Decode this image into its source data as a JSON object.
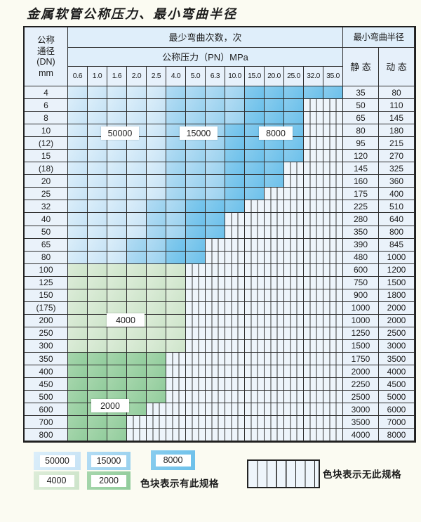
{
  "title": "金属软管公称压力、最小弯曲半径",
  "table": {
    "header": {
      "dn_lines": [
        "公称",
        "通径",
        "(DN)",
        "mm"
      ],
      "bend_cycles_label": "最少弯曲次数，次",
      "pressure_label": "公称压力（PN）MPa",
      "pressure_columns": [
        "0.6",
        "1.0",
        "1.6",
        "2.0",
        "2.5",
        "4.0",
        "5.0",
        "6.3",
        "10.0",
        "15.0",
        "20.0",
        "25.0",
        "32.0",
        "35.0"
      ],
      "radius_label": "最小弯曲半径",
      "static_label": "静 态",
      "dynamic_label": "动 态"
    },
    "legend_note": "colored cell = spec exists with given bend-cycle count; striped cell = no such spec",
    "rows": [
      {
        "dn": "4",
        "static_radius": "35",
        "dynamic_radius": "80",
        "zone": "blue",
        "med_from": 5,
        "dark_from": 9,
        "colored_to": 13
      },
      {
        "dn": "6",
        "static_radius": "50",
        "dynamic_radius": "110",
        "zone": "blue",
        "med_from": 5,
        "dark_from": 9,
        "colored_to": 11
      },
      {
        "dn": "8",
        "static_radius": "65",
        "dynamic_radius": "145",
        "zone": "blue",
        "med_from": 5,
        "dark_from": 9,
        "colored_to": 11
      },
      {
        "dn": "10",
        "static_radius": "80",
        "dynamic_radius": "180",
        "zone": "blue",
        "med_from": 5,
        "dark_from": 8,
        "colored_to": 11
      },
      {
        "dn": "(12)",
        "static_radius": "95",
        "dynamic_radius": "215",
        "zone": "blue",
        "med_from": 5,
        "dark_from": 8,
        "colored_to": 11
      },
      {
        "dn": "15",
        "static_radius": "120",
        "dynamic_radius": "270",
        "zone": "blue",
        "med_from": 5,
        "dark_from": 8,
        "colored_to": 11
      },
      {
        "dn": "(18)",
        "static_radius": "145",
        "dynamic_radius": "325",
        "zone": "blue",
        "med_from": 5,
        "dark_from": 8,
        "colored_to": 10
      },
      {
        "dn": "20",
        "static_radius": "160",
        "dynamic_radius": "360",
        "zone": "blue",
        "med_from": 5,
        "dark_from": 8,
        "colored_to": 10
      },
      {
        "dn": "25",
        "static_radius": "175",
        "dynamic_radius": "400",
        "zone": "blue",
        "med_from": 5,
        "dark_from": 8,
        "colored_to": 9
      },
      {
        "dn": "32",
        "static_radius": "225",
        "dynamic_radius": "510",
        "zone": "blue",
        "med_from": 4,
        "dark_from": 6,
        "colored_to": 8
      },
      {
        "dn": "40",
        "static_radius": "280",
        "dynamic_radius": "640",
        "zone": "blue",
        "med_from": 4,
        "dark_from": 6,
        "colored_to": 7
      },
      {
        "dn": "50",
        "static_radius": "350",
        "dynamic_radius": "800",
        "zone": "blue",
        "med_from": 4,
        "dark_from": 6,
        "colored_to": 7
      },
      {
        "dn": "65",
        "static_radius": "390",
        "dynamic_radius": "845",
        "zone": "blue",
        "med_from": 3,
        "dark_from": 5,
        "colored_to": 6
      },
      {
        "dn": "80",
        "static_radius": "480",
        "dynamic_radius": "1000",
        "zone": "blue",
        "med_from": 3,
        "dark_from": 5,
        "colored_to": 6
      },
      {
        "dn": "100",
        "static_radius": "600",
        "dynamic_radius": "1200",
        "zone": "green4000",
        "colored_to": 5
      },
      {
        "dn": "125",
        "static_radius": "750",
        "dynamic_radius": "1500",
        "zone": "green4000",
        "colored_to": 5
      },
      {
        "dn": "150",
        "static_radius": "900",
        "dynamic_radius": "1800",
        "zone": "green4000",
        "colored_to": 5
      },
      {
        "dn": "(175)",
        "static_radius": "1000",
        "dynamic_radius": "2000",
        "zone": "green4000",
        "colored_to": 5
      },
      {
        "dn": "200",
        "static_radius": "1000",
        "dynamic_radius": "2000",
        "zone": "green4000",
        "colored_to": 5
      },
      {
        "dn": "250",
        "static_radius": "1250",
        "dynamic_radius": "2500",
        "zone": "green4000",
        "colored_to": 5
      },
      {
        "dn": "300",
        "static_radius": "1500",
        "dynamic_radius": "3000",
        "zone": "green4000",
        "colored_to": 5
      },
      {
        "dn": "350",
        "static_radius": "1750",
        "dynamic_radius": "3500",
        "zone": "green2000",
        "colored_to": 4
      },
      {
        "dn": "400",
        "static_radius": "2000",
        "dynamic_radius": "4000",
        "zone": "green2000",
        "colored_to": 4
      },
      {
        "dn": "450",
        "static_radius": "2250",
        "dynamic_radius": "4500",
        "zone": "green2000",
        "colored_to": 4
      },
      {
        "dn": "500",
        "static_radius": "2500",
        "dynamic_radius": "5000",
        "zone": "green2000",
        "colored_to": 4
      },
      {
        "dn": "600",
        "static_radius": "3000",
        "dynamic_radius": "6000",
        "zone": "green2000",
        "colored_to": 3
      },
      {
        "dn": "700",
        "static_radius": "3500",
        "dynamic_radius": "7000",
        "zone": "green2000",
        "colored_to": 2
      },
      {
        "dn": "800",
        "static_radius": "4000",
        "dynamic_radius": "8000",
        "zone": "green2000",
        "colored_to": 2
      }
    ],
    "cycle_labels": [
      "50000",
      "15000",
      "8000",
      "4000",
      "2000"
    ]
  },
  "legend": {
    "swatches": [
      {
        "label": "50000",
        "color": "#d4eaf8"
      },
      {
        "label": "15000",
        "color": "#a9d9f2"
      },
      {
        "label": "8000",
        "color": "#79c6ec"
      },
      {
        "label": "4000",
        "color": "#d7e9d4"
      },
      {
        "label": "2000",
        "color": "#9cd1a4"
      }
    ],
    "has_spec_text": "色块表示有此规格",
    "no_spec_text": "色块表示无此规格"
  },
  "colors": {
    "blue_50000": "#d4eaf8",
    "blue_15000": "#a9d9f2",
    "blue_8000": "#79c6ec",
    "green_4000": "#d7e9d4",
    "green_2000": "#9cd1a4",
    "no_spec_bg": "#eef5fb",
    "grid_line": "#2e2e2e"
  }
}
